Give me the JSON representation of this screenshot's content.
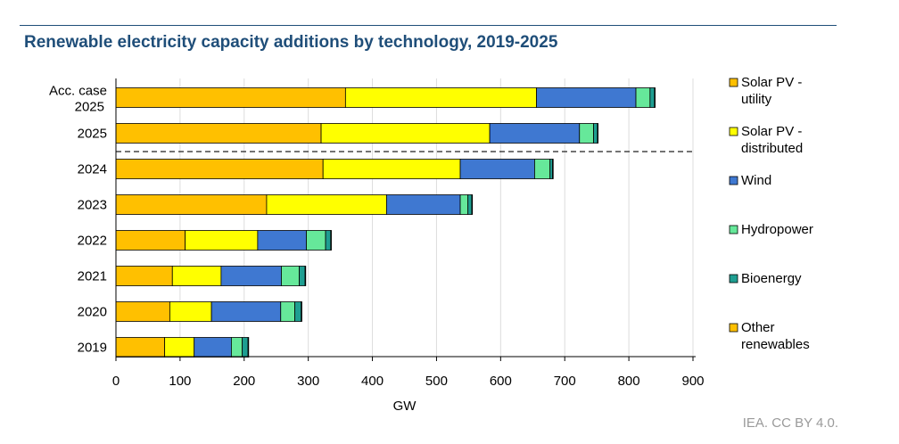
{
  "title": "Renewable electricity capacity additions by technology, 2019-2025",
  "credit": "IEA. CC BY 4.0.",
  "chart_data": {
    "type": "bar",
    "orientation": "horizontal",
    "stacked": true,
    "title": "Renewable electricity capacity additions by technology, 2019-2025",
    "xlabel": "GW",
    "ylabel": "",
    "xlim": [
      0,
      900
    ],
    "xticks": [
      0,
      100,
      200,
      300,
      400,
      500,
      600,
      700,
      800,
      900
    ],
    "grid": "vertical",
    "legend": "right",
    "categories": [
      "Acc. case 2025",
      "2025",
      "2024",
      "2023",
      "2022",
      "2021",
      "2020",
      "2019"
    ],
    "divider_after": "2025",
    "series": [
      {
        "name": "Solar PV - utility",
        "color": "#ffc000",
        "values": [
          358,
          320,
          323,
          235,
          108,
          88,
          84,
          76
        ]
      },
      {
        "name": "Solar PV - distributed",
        "color": "#ffff00",
        "values": [
          298,
          263,
          214,
          187,
          113,
          76,
          65,
          46
        ]
      },
      {
        "name": "Wind",
        "color": "#3f78d1",
        "values": [
          155,
          140,
          116,
          115,
          76,
          94,
          108,
          58
        ]
      },
      {
        "name": "Hydropower",
        "color": "#66e89a",
        "values": [
          22,
          22,
          24,
          12,
          30,
          28,
          22,
          17
        ]
      },
      {
        "name": "Bioenergy",
        "color": "#1e9e91",
        "values": [
          7,
          6,
          4,
          6,
          8,
          9,
          10,
          9
        ]
      },
      {
        "name": "Other renewables",
        "color": "#ffc000",
        "values": [
          1,
          1,
          1,
          1,
          1,
          1,
          1,
          1
        ]
      }
    ]
  }
}
